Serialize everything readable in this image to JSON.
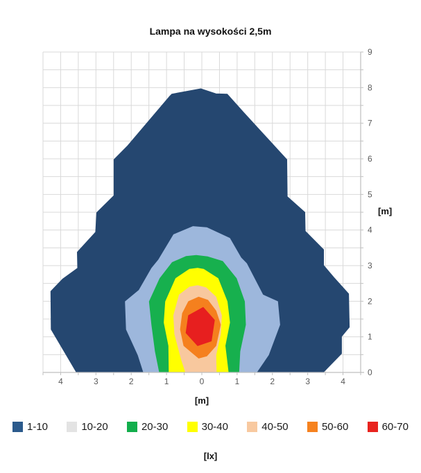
{
  "title": "Lampa na wysokości 2,5m",
  "axes": {
    "x_title": "[m]",
    "y_title": "[m]",
    "x_tick_labels": [
      "4",
      "3",
      "2",
      "1",
      "0",
      "1",
      "2",
      "3",
      "4"
    ],
    "y_tick_labels": [
      "0",
      "1",
      "2",
      "3",
      "4",
      "5",
      "6",
      "7",
      "8",
      "9"
    ]
  },
  "legend": {
    "unit_label": "[lx]",
    "entries": [
      {
        "label": "1-10",
        "swatch_color": "#2B5A8C"
      },
      {
        "label": "10-20",
        "swatch_color": "#E3E3E3"
      },
      {
        "label": "20-30",
        "swatch_color": "#12AE4C"
      },
      {
        "label": "30-40",
        "swatch_color": "#FFFF00"
      },
      {
        "label": "40-50",
        "swatch_color": "#F8C9A0"
      },
      {
        "label": "50-60",
        "swatch_color": "#F6821F"
      },
      {
        "label": "60-70",
        "swatch_color": "#E8231E"
      }
    ]
  },
  "chart_data": {
    "type": "heatmap",
    "subtype": "filled-contour",
    "title": "Lampa na wysokości 2,5m",
    "xlabel": "[m]",
    "ylabel": "[m]",
    "unit": "[lx]",
    "x_range": [
      -4.5,
      4.5
    ],
    "y_range": [
      0,
      9
    ],
    "grid_step": 0.5,
    "grid_on": true,
    "grid_color": "#D9D9D9",
    "axis_color": "#BFBFBF",
    "tick_label_color": "#595959",
    "x_tick_values": [
      -4,
      -3,
      -2,
      -1,
      0,
      1,
      2,
      3,
      4
    ],
    "y_tick_values": [
      0,
      1,
      2,
      3,
      4,
      5,
      6,
      7,
      8,
      9
    ],
    "legend_position": "bottom",
    "bands": [
      {
        "range": "1-10",
        "color": "#254770",
        "points": [
          [
            -3.55,
            0
          ],
          [
            -4.27,
            1.21
          ],
          [
            -4.28,
            2.28
          ],
          [
            -3.95,
            2.62
          ],
          [
            -3.52,
            2.93
          ],
          [
            -3.53,
            3.38
          ],
          [
            -3.01,
            3.94
          ],
          [
            -2.98,
            4.49
          ],
          [
            -2.49,
            4.97
          ],
          [
            -2.49,
            5.98
          ],
          [
            -2.1,
            6.37
          ],
          [
            -0.92,
            7.75
          ],
          [
            -0.85,
            7.82
          ],
          [
            -0.03,
            7.97
          ],
          [
            0.4,
            7.83
          ],
          [
            0.72,
            7.82
          ],
          [
            1.18,
            7.31
          ],
          [
            2.41,
            5.98
          ],
          [
            2.42,
            4.94
          ],
          [
            2.92,
            4.5
          ],
          [
            2.93,
            3.97
          ],
          [
            3.45,
            3.45
          ],
          [
            3.45,
            3.01
          ],
          [
            3.74,
            2.67
          ],
          [
            4.16,
            2.21
          ],
          [
            4.18,
            1.27
          ],
          [
            3.96,
            1.01
          ],
          [
            3.96,
            0.53
          ],
          [
            3.44,
            0
          ]
        ]
      },
      {
        "range": "10-20",
        "color": "#9DB7DC",
        "points": [
          [
            -1.65,
            0
          ],
          [
            -1.81,
            0.49
          ],
          [
            -2.14,
            1.21
          ],
          [
            -2.17,
            1.99
          ],
          [
            -1.78,
            2.31
          ],
          [
            -1.42,
            2.93
          ],
          [
            -1.23,
            3.16
          ],
          [
            -0.8,
            3.87
          ],
          [
            -0.25,
            4.1
          ],
          [
            0.14,
            4.07
          ],
          [
            0.79,
            3.77
          ],
          [
            1.11,
            3.22
          ],
          [
            1.27,
            3.06
          ],
          [
            1.73,
            2.18
          ],
          [
            2.15,
            1.99
          ],
          [
            2.21,
            1.34
          ],
          [
            1.89,
            0.49
          ],
          [
            1.55,
            0
          ]
        ]
      },
      {
        "range": "20-30",
        "color": "#17B04E",
        "points": [
          [
            -1.2,
            0
          ],
          [
            -1.32,
            0.59
          ],
          [
            -1.42,
            1.34
          ],
          [
            -1.49,
            1.99
          ],
          [
            -1.19,
            2.64
          ],
          [
            -0.84,
            3.09
          ],
          [
            -0.45,
            3.26
          ],
          [
            -0.16,
            3.29
          ],
          [
            0.17,
            3.25
          ],
          [
            0.59,
            3.12
          ],
          [
            0.98,
            2.64
          ],
          [
            1.21,
            1.99
          ],
          [
            1.24,
            1.34
          ],
          [
            1.08,
            0.59
          ],
          [
            1.05,
            0
          ]
        ]
      },
      {
        "range": "30-40",
        "color": "#FFFF00",
        "points": [
          [
            -0.93,
            0
          ],
          [
            -0.94,
            0.75
          ],
          [
            -1.07,
            1.4
          ],
          [
            -1.03,
            1.99
          ],
          [
            -0.74,
            2.64
          ],
          [
            -0.35,
            2.9
          ],
          [
            -0.12,
            2.93
          ],
          [
            0.05,
            2.9
          ],
          [
            0.46,
            2.64
          ],
          [
            0.72,
            1.99
          ],
          [
            0.79,
            1.4
          ],
          [
            0.66,
            0.75
          ],
          [
            0.75,
            0
          ]
        ]
      },
      {
        "range": "40-50",
        "color": "#F8C89E",
        "points": [
          [
            -0.46,
            0
          ],
          [
            -0.58,
            0.36
          ],
          [
            -0.77,
            1.08
          ],
          [
            -0.8,
            1.6
          ],
          [
            -0.64,
            2.18
          ],
          [
            -0.35,
            2.4
          ],
          [
            -0.12,
            2.44
          ],
          [
            0.12,
            2.38
          ],
          [
            0.4,
            2.12
          ],
          [
            0.56,
            1.6
          ],
          [
            0.53,
            1.08
          ],
          [
            0.4,
            0.49
          ],
          [
            0.41,
            0
          ]
        ]
      },
      {
        "range": "50-60",
        "color": "#F5801E",
        "points": [
          [
            -0.09,
            2.12
          ],
          [
            0.17,
            2.03
          ],
          [
            0.4,
            1.73
          ],
          [
            0.53,
            1.34
          ],
          [
            0.4,
            0.75
          ],
          [
            0.14,
            0.46
          ],
          [
            -0.09,
            0.4
          ],
          [
            -0.51,
            0.75
          ],
          [
            -0.61,
            1.21
          ],
          [
            -0.55,
            1.66
          ],
          [
            -0.38,
            1.99
          ]
        ]
      },
      {
        "range": "60-70",
        "color": "#E71F1F",
        "points": [
          [
            0.04,
            1.83
          ],
          [
            0.36,
            1.47
          ],
          [
            0.27,
            0.88
          ],
          [
            -0.12,
            0.75
          ],
          [
            -0.45,
            1.11
          ],
          [
            -0.38,
            1.6
          ]
        ]
      }
    ]
  }
}
